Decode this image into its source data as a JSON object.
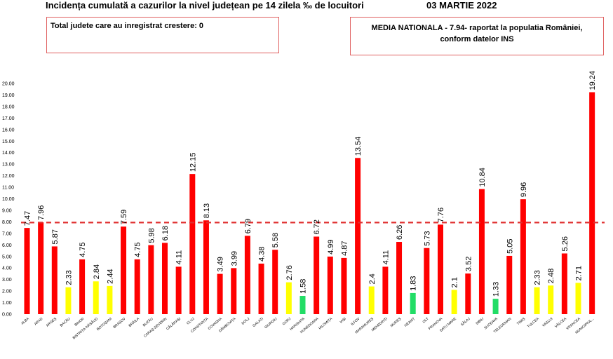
{
  "header": {
    "title": "Incidența cumulată a cazurilor la nivel județean pe 14 zilela ‰ de locuitori",
    "date": "03 MARTIE 2022"
  },
  "info_boxes": {
    "left": "Total judete care au inregistrat crestere: 0",
    "right_line1": "MEDIA NATIONALA - 7.94-  raportat la populatia României,",
    "right_line2": "conform datelor INS"
  },
  "colors": {
    "red": "#ff0000",
    "yellow": "#ffff00",
    "green": "#22dd66",
    "reference_line": "#e03030"
  },
  "chart_data": {
    "type": "bar",
    "title": "Incidența cumulată a cazurilor la nivel județean pe 14 zilela ‰ de locuitori",
    "xlabel": "",
    "ylabel": "",
    "ylim": [
      0,
      20
    ],
    "yticks": [
      "0.00",
      "1.00",
      "2.00",
      "3.00",
      "4.00",
      "5.00",
      "6.00",
      "7.00",
      "8.00",
      "9.00",
      "10.00",
      "11.00",
      "12.00",
      "13.00",
      "14.00",
      "15.00",
      "16.00",
      "17.00",
      "18.00",
      "19.00",
      "20.00"
    ],
    "reference_line": 7.94,
    "grid": false,
    "legend": "none",
    "categories": [
      "ALBA",
      "ARAD",
      "ARGEȘ",
      "BACĂU",
      "BIHOR",
      "BISTRIȚA-NĂSĂUD",
      "BOTOȘANI",
      "BRAȘOV",
      "BRĂILA",
      "BUZĂU",
      "CARAȘ-SEVERIN",
      "CĂLĂRAȘI",
      "CLUJ",
      "CONSTANȚA",
      "COVASNA",
      "DÂMBOVIȚA",
      "DOLJ",
      "GALAȚI",
      "GIURGIU",
      "GORJ",
      "HARGHITA",
      "HUNEDOARA",
      "IALOMIȚA",
      "IAȘI",
      "ILFOV",
      "MARAMUREȘ",
      "MEHEDINȚI",
      "MUREȘ",
      "NEAMȚ",
      "OLT",
      "PRAHOVA",
      "SATU MARE",
      "SĂLAJ",
      "SIBIU",
      "SUCEAVA",
      "TELEORMAN",
      "TIMIȘ",
      "TULCEA",
      "VASLUI",
      "VÂLCEA",
      "VRANCEA",
      "MUNICIPIUL..."
    ],
    "values": [
      7.47,
      7.96,
      5.87,
      2.33,
      4.75,
      2.84,
      2.44,
      7.59,
      4.75,
      5.98,
      6.18,
      4.11,
      12.15,
      8.13,
      3.49,
      3.99,
      6.79,
      4.38,
      5.58,
      2.76,
      1.58,
      6.72,
      4.99,
      4.87,
      13.54,
      2.4,
      4.11,
      6.26,
      1.83,
      5.73,
      7.76,
      2.1,
      3.52,
      10.84,
      1.33,
      5.05,
      9.96,
      2.33,
      2.48,
      5.26,
      2.71,
      19.24
    ],
    "value_labels": [
      "7.47",
      "7.96",
      "5.87",
      "2.33",
      "4.75",
      "2.84",
      "2.44",
      "7.59",
      "4.75",
      "5.98",
      "6.18",
      "4.11",
      "12.15",
      "8.13",
      "3.49",
      "3.99",
      "6.79",
      "4.38",
      "5.58",
      "2.76",
      "1.58",
      "6.72",
      "4.99",
      "4.87",
      "13.54",
      "2.4",
      "4.11",
      "6.26",
      "1.83",
      "5.73",
      "7.76",
      "2.1",
      "3.52",
      "10.84",
      "1.33",
      "5.05",
      "9.96",
      "2.33",
      "2.48",
      "5.26",
      "2.71",
      "19.24"
    ],
    "bar_colors": [
      "red",
      "red",
      "red",
      "yellow",
      "red",
      "yellow",
      "yellow",
      "red",
      "red",
      "red",
      "red",
      "red",
      "red",
      "red",
      "red",
      "red",
      "red",
      "red",
      "red",
      "yellow",
      "green",
      "red",
      "red",
      "red",
      "red",
      "yellow",
      "red",
      "red",
      "green",
      "red",
      "red",
      "yellow",
      "red",
      "red",
      "green",
      "red",
      "red",
      "yellow",
      "yellow",
      "red",
      "yellow",
      "red"
    ]
  }
}
